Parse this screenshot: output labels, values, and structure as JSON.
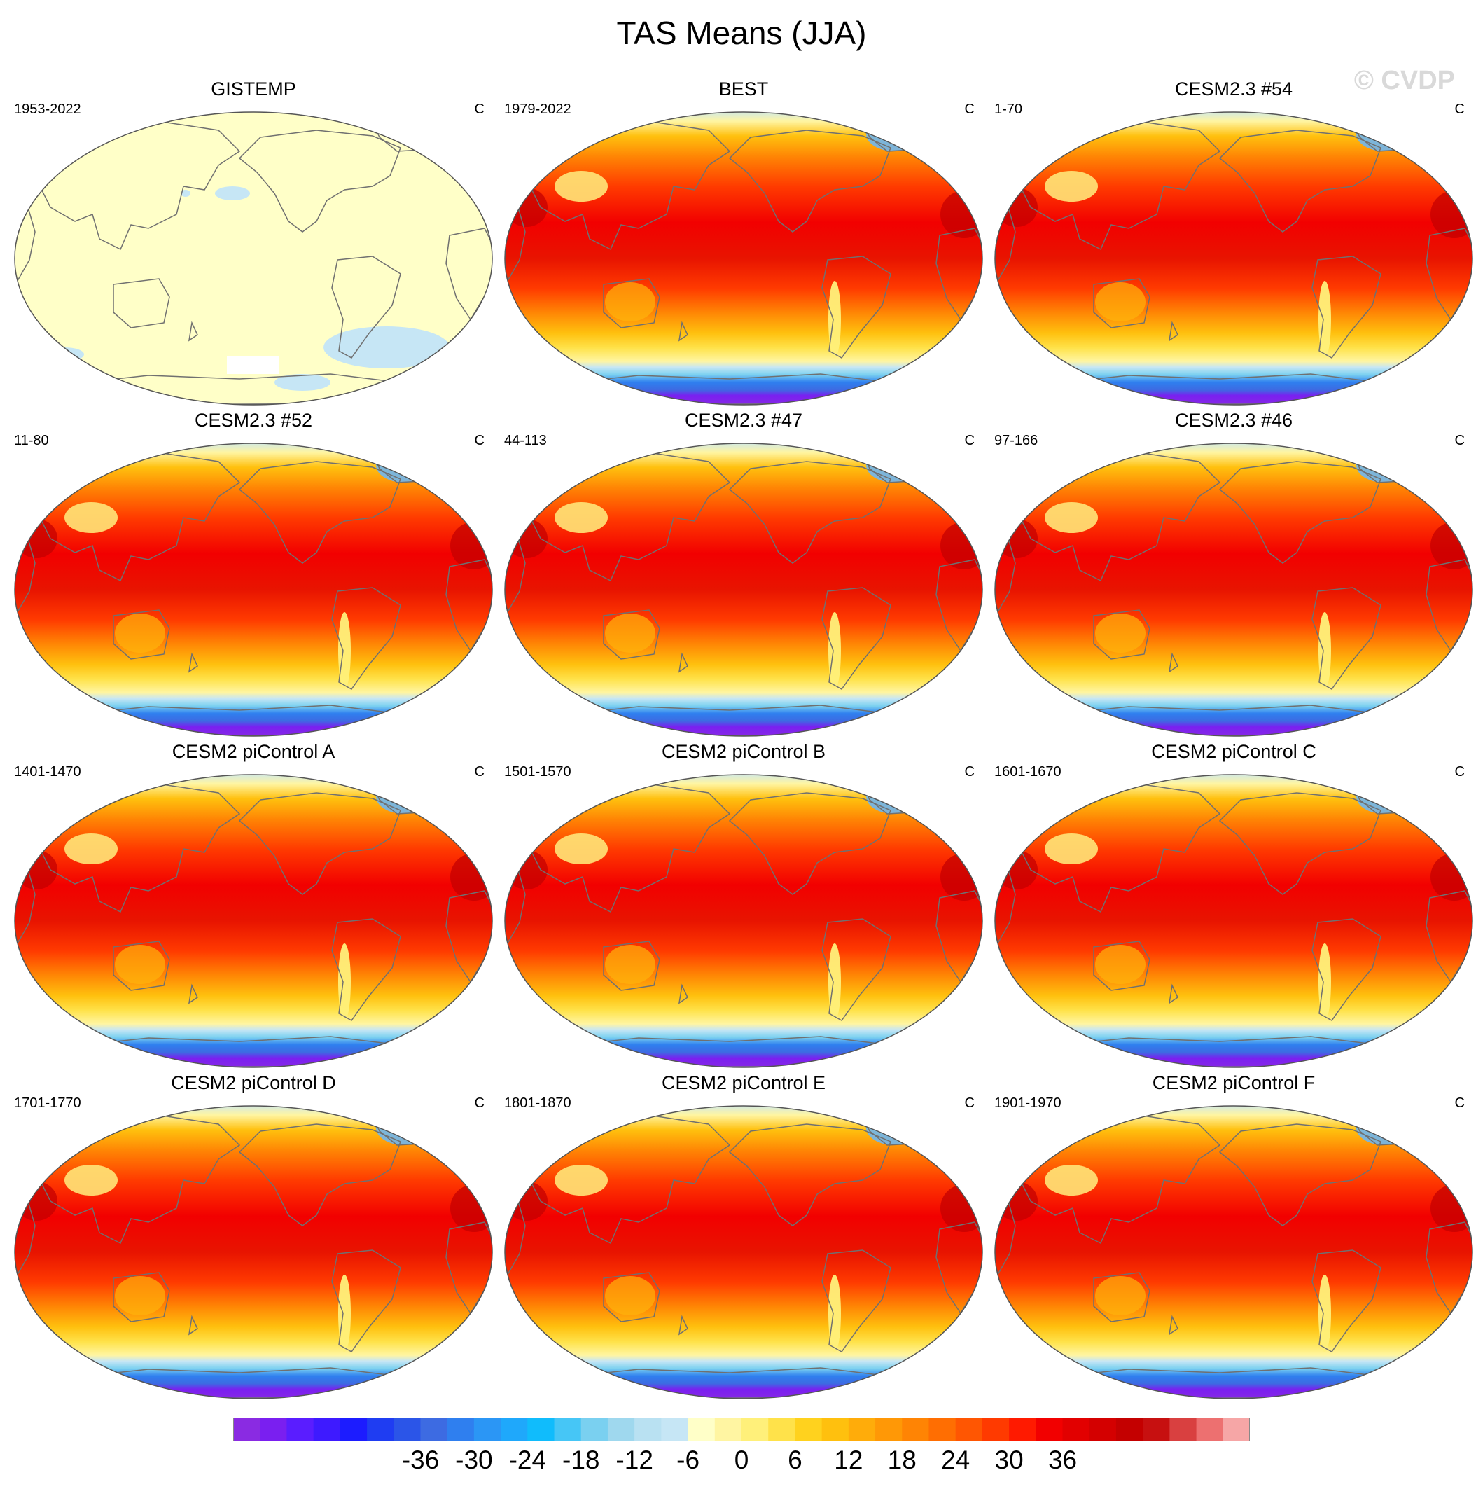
{
  "title": "TAS Means (JJA)",
  "watermark": "© CVDP",
  "panels": [
    {
      "title": "GISTEMP",
      "period": "1953-2022",
      "units": "C",
      "style": "obs_missing"
    },
    {
      "title": "BEST",
      "period": "1979-2022",
      "units": "C",
      "style": "field"
    },
    {
      "title": "CESM2.3 #54",
      "period": "1-70",
      "units": "C",
      "style": "field"
    },
    {
      "title": "CESM2.3 #52",
      "period": "11-80",
      "units": "C",
      "style": "field"
    },
    {
      "title": "CESM2.3 #47",
      "period": "44-113",
      "units": "C",
      "style": "field"
    },
    {
      "title": "CESM2.3 #46",
      "period": "97-166",
      "units": "C",
      "style": "field"
    },
    {
      "title": "CESM2 piControl A",
      "period": "1401-1470",
      "units": "C",
      "style": "field"
    },
    {
      "title": "CESM2 piControl B",
      "period": "1501-1570",
      "units": "C",
      "style": "field"
    },
    {
      "title": "CESM2 piControl C",
      "period": "1601-1670",
      "units": "C",
      "style": "field"
    },
    {
      "title": "CESM2 piControl D",
      "period": "1701-1770",
      "units": "C",
      "style": "field"
    },
    {
      "title": "CESM2 piControl E",
      "period": "1801-1870",
      "units": "C",
      "style": "field"
    },
    {
      "title": "CESM2 piControl F",
      "period": "1901-1970",
      "units": "C",
      "style": "field"
    }
  ],
  "colorbar": {
    "colors": [
      "#8a2be2",
      "#7a1ff0",
      "#5a1dff",
      "#3e1aff",
      "#1c1cff",
      "#1f3df2",
      "#2b55e8",
      "#3d6be2",
      "#2f7fef",
      "#2b96f5",
      "#1fa8fb",
      "#10bcfc",
      "#46c6f6",
      "#7ad0f0",
      "#9fd8ee",
      "#b9e1f2",
      "#c6e6f5",
      "#ffffc8",
      "#fff5a2",
      "#fff07a",
      "#ffe24a",
      "#ffd21e",
      "#ffc00e",
      "#ffac0a",
      "#ff9806",
      "#ff8404",
      "#ff6e02",
      "#ff5602",
      "#ff3a00",
      "#ff1a00",
      "#f20000",
      "#e20000",
      "#d40000",
      "#c40000",
      "#c71010",
      "#d94040",
      "#ed7070",
      "#f6a6a6"
    ],
    "ticks": [
      "-36",
      "-30",
      "-24",
      "-18",
      "-12",
      "-6",
      "0",
      "6",
      "12",
      "18",
      "24",
      "30",
      "36"
    ]
  }
}
